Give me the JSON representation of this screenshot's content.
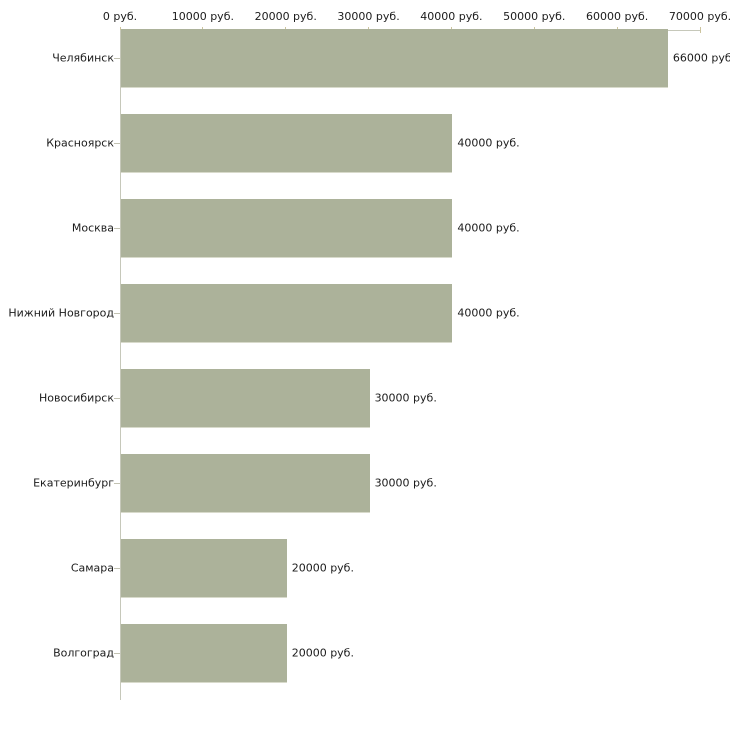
{
  "chart_data": {
    "type": "bar",
    "orientation": "horizontal",
    "title": "",
    "xlabel": "",
    "ylabel": "",
    "categories": [
      "Челябинск",
      "Красноярск",
      "Москва",
      "Нижний Новгород",
      "Новосибирск",
      "Екатеринбург",
      "Самара",
      "Волгоград"
    ],
    "values": [
      66000,
      40000,
      40000,
      40000,
      30000,
      30000,
      20000,
      20000
    ],
    "value_labels": [
      "66000 руб",
      "40000 руб.",
      "40000 руб.",
      "40000 руб.",
      "30000 руб.",
      "30000 руб.",
      "20000 руб.",
      "20000 руб."
    ],
    "x_axis": {
      "tick_values": [
        0,
        10000,
        20000,
        30000,
        40000,
        50000,
        60000,
        70000
      ],
      "tick_labels": [
        "0 руб.",
        "10000 руб.",
        "20000 руб.",
        "30000 руб.",
        "40000 руб.",
        "50000 руб.",
        "60000 руб.",
        "70000 руб."
      ],
      "min": 0,
      "max": 70000
    },
    "grid": false,
    "legend": false,
    "colors": {
      "bar_fill": "#acb29a",
      "bar_edge_highlight": "#d8dacb",
      "axis_line": "#c6c8ba",
      "x_tick": "#ccc49e",
      "y_tick": "#c2c2b2",
      "text": "#1c1c1c",
      "background": "#ffffff"
    }
  }
}
